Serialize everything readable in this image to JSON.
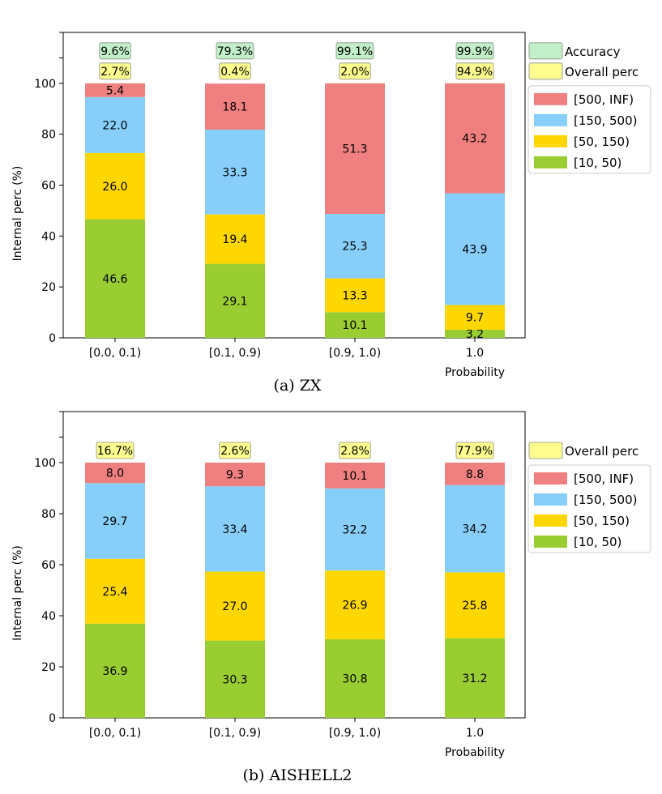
{
  "chart_data": [
    {
      "type": "bar",
      "stacked": true,
      "caption": "(a)  ZX",
      "xlabel": "Probability",
      "ylabel": "Internal perc (%)",
      "ylim": [
        0,
        120
      ],
      "yticks": [
        0,
        20,
        40,
        60,
        80,
        100
      ],
      "categories": [
        "[0.0, 0.1)",
        "[0.1, 0.9)",
        "[0.9, 1.0)",
        "1.0"
      ],
      "series": [
        {
          "name": "[10, 50)",
          "color": "#9acd32",
          "values": [
            46.6,
            29.1,
            10.1,
            3.2
          ]
        },
        {
          "name": "[50, 150)",
          "color": "#ffd700",
          "values": [
            26.0,
            19.4,
            13.3,
            9.7
          ]
        },
        {
          "name": "[150, 500)",
          "color": "#87cefa",
          "values": [
            22.0,
            33.3,
            25.3,
            43.9
          ]
        },
        {
          "name": "[500, INF)",
          "color": "#f08080",
          "values": [
            5.4,
            18.1,
            51.3,
            43.2
          ]
        }
      ],
      "annotations": [
        {
          "name": "Accuracy",
          "color": "#c1f0c8",
          "values": [
            "9.6%",
            "79.3%",
            "99.1%",
            "99.9%"
          ]
        },
        {
          "name": "Overall perc",
          "color": "#fcfc8f",
          "values": [
            "2.7%",
            "0.4%",
            "2.0%",
            "94.9%"
          ]
        }
      ],
      "legend": [
        "[500, INF)",
        "[150, 500)",
        "[50, 150)",
        "[10, 50)"
      ],
      "legend_position": "right"
    },
    {
      "type": "bar",
      "stacked": true,
      "caption": "(b) AISHELL2",
      "xlabel": "Probability",
      "ylabel": "Internal perc (%)",
      "ylim": [
        0,
        120
      ],
      "yticks": [
        0,
        20,
        40,
        60,
        80,
        100
      ],
      "categories": [
        "[0.0, 0.1)",
        "[0.1, 0.9)",
        "[0.9, 1.0)",
        "1.0"
      ],
      "series": [
        {
          "name": "[10, 50)",
          "color": "#9acd32",
          "values": [
            36.9,
            30.3,
            30.8,
            31.2
          ]
        },
        {
          "name": "[50, 150)",
          "color": "#ffd700",
          "values": [
            25.4,
            27.0,
            26.9,
            25.8
          ]
        },
        {
          "name": "[150, 500)",
          "color": "#87cefa",
          "values": [
            29.7,
            33.4,
            32.2,
            34.2
          ]
        },
        {
          "name": "[500, INF)",
          "color": "#f08080",
          "values": [
            8.0,
            9.3,
            10.1,
            8.8
          ]
        }
      ],
      "annotations": [
        {
          "name": "Overall perc",
          "color": "#fcfc8f",
          "values": [
            "16.7%",
            "2.6%",
            "2.8%",
            "77.9%"
          ]
        }
      ],
      "legend": [
        "[500, INF)",
        "[150, 500)",
        "[50, 150)",
        "[10, 50)"
      ],
      "legend_position": "right"
    }
  ]
}
